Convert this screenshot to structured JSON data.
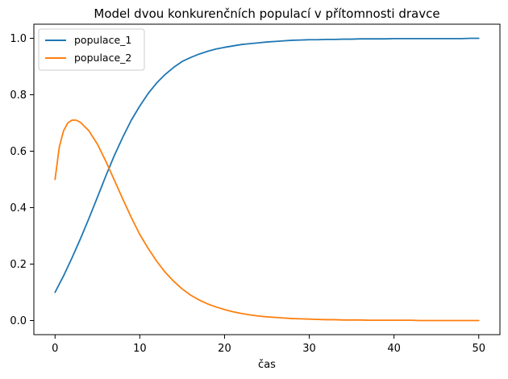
{
  "chart_data": {
    "type": "line",
    "title": "Model dvou konkurenčních populací v přítomnosti dravce",
    "xlabel": "čas",
    "ylabel": "",
    "xlim": [
      -2.5,
      52.5
    ],
    "ylim": [
      -0.05,
      1.05
    ],
    "xticks": [
      0,
      10,
      20,
      30,
      40,
      50
    ],
    "yticks": [
      0.0,
      0.2,
      0.4,
      0.6,
      0.8,
      1.0
    ],
    "xtick_labels": [
      "0",
      "10",
      "20",
      "30",
      "40",
      "50"
    ],
    "ytick_labels": [
      "0.0",
      "0.2",
      "0.4",
      "0.6",
      "0.8",
      "1.0"
    ],
    "legend_position": "top-left",
    "grid": false,
    "series": [
      {
        "name": "populace_1",
        "color": "#1f77b4",
        "x": [
          0,
          1,
          2,
          3,
          4,
          5,
          6,
          7,
          8,
          9,
          10,
          11,
          12,
          13,
          14,
          15,
          16,
          17,
          18,
          19,
          20,
          21,
          22,
          23,
          24,
          25,
          26,
          27,
          28,
          29,
          30,
          31,
          32,
          33,
          34,
          35,
          36,
          37,
          38,
          39,
          40,
          41,
          42,
          43,
          44,
          45,
          46,
          47,
          48,
          49,
          50
        ],
        "y": [
          0.1,
          0.158,
          0.222,
          0.29,
          0.362,
          0.437,
          0.513,
          0.585,
          0.65,
          0.71,
          0.76,
          0.805,
          0.842,
          0.872,
          0.897,
          0.918,
          0.932,
          0.944,
          0.954,
          0.962,
          0.968,
          0.973,
          0.978,
          0.981,
          0.984,
          0.987,
          0.989,
          0.991,
          0.993,
          0.994,
          0.995,
          0.995,
          0.996,
          0.996,
          0.997,
          0.997,
          0.998,
          0.998,
          0.998,
          0.998,
          0.999,
          0.999,
          0.999,
          0.999,
          0.999,
          0.999,
          0.999,
          0.999,
          0.999,
          1.0,
          1.0
        ]
      },
      {
        "name": "populace_2",
        "color": "#ff7f0e",
        "x": [
          0,
          0.5,
          1,
          1.5,
          2,
          2.5,
          3,
          4,
          5,
          6,
          7,
          8,
          9,
          10,
          11,
          12,
          13,
          14,
          15,
          16,
          17,
          18,
          19,
          20,
          21,
          22,
          23,
          24,
          25,
          26,
          27,
          28,
          29,
          30,
          31,
          32,
          33,
          34,
          35,
          36,
          37,
          38,
          39,
          40,
          41,
          42,
          43,
          44,
          45,
          46,
          47,
          48,
          49,
          50
        ],
        "y": [
          0.5,
          0.615,
          0.672,
          0.7,
          0.71,
          0.71,
          0.702,
          0.672,
          0.625,
          0.564,
          0.497,
          0.43,
          0.365,
          0.305,
          0.255,
          0.21,
          0.171,
          0.139,
          0.112,
          0.09,
          0.073,
          0.059,
          0.048,
          0.039,
          0.031,
          0.025,
          0.02,
          0.016,
          0.013,
          0.011,
          0.009,
          0.007,
          0.006,
          0.005,
          0.004,
          0.003,
          0.003,
          0.002,
          0.002,
          0.002,
          0.001,
          0.001,
          0.001,
          0.001,
          0.001,
          0.001,
          0.0,
          0.0,
          0.0,
          0.0,
          0.0,
          0.0,
          0.0,
          0.0
        ]
      }
    ]
  }
}
